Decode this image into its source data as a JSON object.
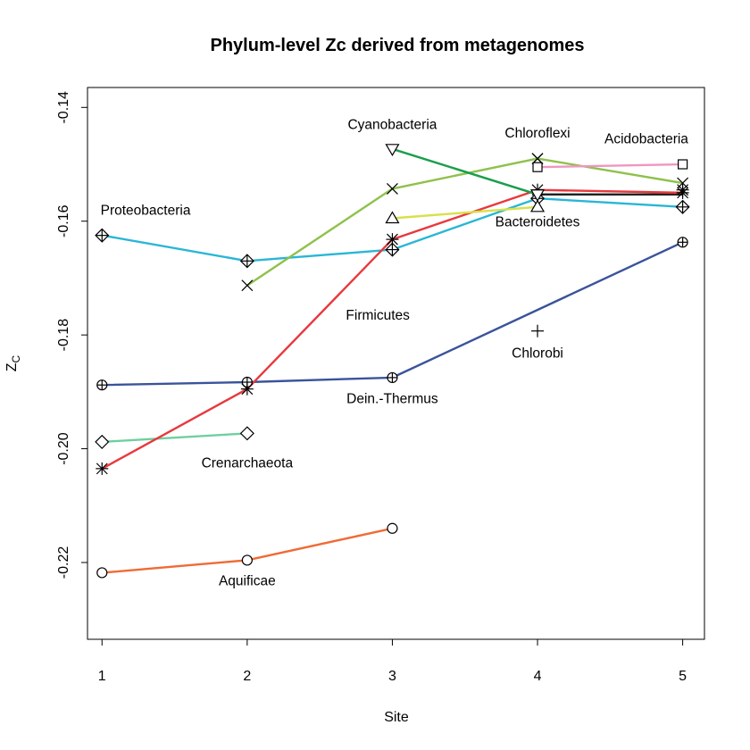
{
  "chart_data": {
    "type": "line",
    "title": "Phylum-level Zc derived from metagenomes",
    "xlabel": "Site",
    "ylabel": "Z",
    "ylabel_sub": "C",
    "xlim": [
      0.9,
      5.15
    ],
    "ylim": [
      -0.2335,
      -0.1365
    ],
    "xticks": [
      "1",
      "2",
      "3",
      "4",
      "5"
    ],
    "yticks": [
      "-0.22",
      "-0.20",
      "-0.18",
      "-0.16",
      "-0.14"
    ],
    "grid": false,
    "legend": "none",
    "series": [
      {
        "label": "Proteobacteria",
        "color": "#29b6d6",
        "marker": "diamond-plus",
        "points": [
          [
            1,
            -0.1625
          ],
          [
            2,
            -0.167
          ],
          [
            3,
            -0.165
          ],
          [
            4,
            -0.156
          ],
          [
            5,
            -0.1575
          ]
        ]
      },
      {
        "label": "Dein.-Thermus",
        "color": "#3a539b",
        "marker": "circle-plus",
        "points": [
          [
            1,
            -0.1888
          ],
          [
            2,
            -0.1883
          ],
          [
            3,
            -0.1875
          ],
          [
            5,
            -0.1637
          ]
        ]
      },
      {
        "label": "Crenarchaeota",
        "color": "#6fcf9f",
        "marker": "diamond",
        "points": [
          [
            1,
            -0.1988
          ],
          [
            2,
            -0.1973
          ]
        ]
      },
      {
        "label": "Firmicutes",
        "color": "#e8383d",
        "marker": "asterisk",
        "points": [
          [
            1,
            -0.2035
          ],
          [
            2,
            -0.1895
          ],
          [
            3,
            -0.1632
          ],
          [
            4,
            -0.1545
          ],
          [
            5,
            -0.155
          ]
        ]
      },
      {
        "label": "Aquificae",
        "color": "#ef6b36",
        "marker": "circle",
        "points": [
          [
            1,
            -0.2218
          ],
          [
            2,
            -0.2196
          ],
          [
            3,
            -0.214
          ]
        ]
      },
      {
        "label": "Cyanobacteria",
        "color": "#8ec14b",
        "marker": "x",
        "points": [
          [
            2,
            -0.1713
          ],
          [
            3,
            -0.1543
          ],
          [
            4,
            -0.149
          ],
          [
            5,
            -0.1533
          ]
        ]
      },
      {
        "label": "Chloroflexi",
        "color": "#1a9e4a",
        "marker": "triangle-down",
        "points": [
          [
            3,
            -0.1473
          ],
          [
            4,
            -0.1553
          ]
        ]
      },
      {
        "label": "Bacteroidetes",
        "color": "#d8e04a",
        "marker": "triangle",
        "points": [
          [
            3,
            -0.1595
          ],
          [
            4,
            -0.1575
          ]
        ]
      },
      {
        "label": "Acidobacteria",
        "color": "#ef96c0",
        "marker": "square",
        "points": [
          [
            4,
            -0.1505
          ],
          [
            5,
            -0.15
          ]
        ]
      },
      {
        "label": "Chlorobi",
        "color": "#222222",
        "marker": "plus",
        "points": [
          [
            4,
            -0.1793
          ]
        ]
      }
    ],
    "extra_points": [
      {
        "marker": "x",
        "points": [
          [
            4,
            -0.149
          ]
        ]
      },
      {
        "marker": "asterisk",
        "points": [
          [
            5,
            -0.1545
          ]
        ]
      }
    ],
    "extra_segments": [
      {
        "color": "#1a9e4a",
        "points": [
          [
            4,
            -0.1553
          ],
          [
            5,
            -0.1553
          ]
        ]
      },
      {
        "color": "#222222",
        "points": [
          [
            4,
            -0.1553
          ],
          [
            5,
            -0.1553
          ]
        ]
      }
    ],
    "annotations": [
      {
        "text": "Proteobacteria",
        "x": 1.3,
        "y": -0.1589
      },
      {
        "text": "Cyanobacteria",
        "x": 3.0,
        "y": -0.1438
      },
      {
        "text": "Chloroflexi",
        "x": 4.0,
        "y": -0.1453
      },
      {
        "text": "Acidobacteria",
        "x": 4.75,
        "y": -0.1463
      },
      {
        "text": "Bacteroidetes",
        "x": 4.0,
        "y": -0.1609
      },
      {
        "text": "Firmicutes",
        "x": 2.9,
        "y": -0.1773
      },
      {
        "text": "Chlorobi",
        "x": 4.0,
        "y": -0.184
      },
      {
        "text": "Dein.-Thermus",
        "x": 3.0,
        "y": -0.192
      },
      {
        "text": "Crenarchaeota",
        "x": 2.0,
        "y": -0.2033
      },
      {
        "text": "Aquificae",
        "x": 2.0,
        "y": -0.224
      }
    ]
  }
}
